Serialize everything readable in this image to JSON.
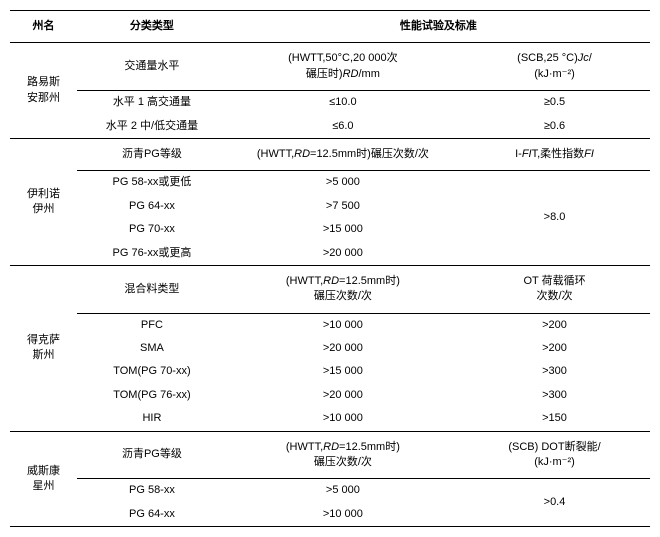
{
  "header": {
    "state": "州名",
    "type": "分类类型",
    "tests": "性能试验及标准"
  },
  "sections": [
    {
      "state": "路易斯\n安那州",
      "typeHeader": "交通量水平",
      "test1Header": "(HWTT,50°C,20 000次\n碾压时)RD/mm",
      "test2Header": "(SCB,25 °C)Jc/\n(kJ·m⁻²)",
      "rows": [
        {
          "type": "水平 1 高交通量",
          "v1": "≤10.0",
          "v2": "≥0.5"
        },
        {
          "type": "水平 2 中/低交通量",
          "v1": "≤6.0",
          "v2": "≥0.6"
        }
      ]
    },
    {
      "state": "伊利诺\n伊州",
      "typeHeader": "沥青PG等级",
      "test1Header": "(HWTT,RD=12.5mm时)碾压次数/次",
      "test2Header": "I-FIT,柔性指数FI",
      "rows": [
        {
          "type": "PG 58-xx或更低",
          "v1": ">5 000"
        },
        {
          "type": "PG 64-xx",
          "v1": ">7 500"
        },
        {
          "type": "PG 70-xx",
          "v1": ">15 000"
        },
        {
          "type": "PG 76-xx或更高",
          "v1": ">20 000"
        }
      ],
      "v2Merged": ">8.0"
    },
    {
      "state": "得克萨\n斯州",
      "typeHeader": "混合料类型",
      "test1Header": "(HWTT,RD=12.5mm时)\n碾压次数/次",
      "test2Header": "OT 荷载循环\n次数/次",
      "rows": [
        {
          "type": "PFC",
          "v1": ">10 000",
          "v2": ">200"
        },
        {
          "type": "SMA",
          "v1": ">20 000",
          "v2": ">200"
        },
        {
          "type": "TOM(PG 70-xx)",
          "v1": ">15 000",
          "v2": ">300"
        },
        {
          "type": "TOM(PG 76-xx)",
          "v1": ">20 000",
          "v2": ">300"
        },
        {
          "type": "HIR",
          "v1": ">10 000",
          "v2": ">150"
        }
      ]
    },
    {
      "state": "威斯康\n星州",
      "typeHeader": "沥青PG等级",
      "test1Header": "(HWTT,RD=12.5mm时)\n碾压次数/次",
      "test2Header": "(SCB) DOT断裂能/\n(kJ·m⁻²)",
      "rows": [
        {
          "type": "PG 58-xx",
          "v1": ">5 000"
        },
        {
          "type": "PG 64-xx",
          "v1": ">10 000"
        }
      ],
      "v2Merged": ">0.4"
    }
  ]
}
